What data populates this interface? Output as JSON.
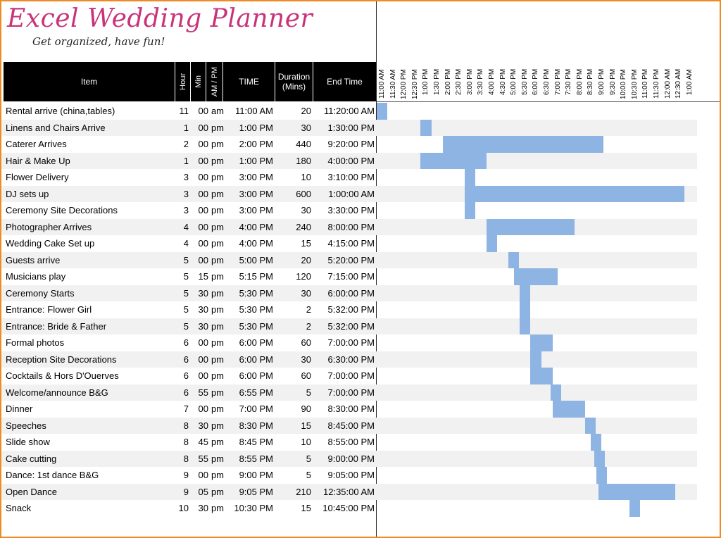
{
  "logo": {
    "title": "Excel Wedding Planner",
    "tagline": "Get organized, have fun!"
  },
  "header": {
    "item": "Item",
    "hour": "Hour",
    "min": "Min",
    "ampm": "AM / PM",
    "time": "TIME",
    "duration": "Duration (Mins)",
    "end": "End Time"
  },
  "timeline": [
    "11:00 AM",
    "11:30 AM",
    "12:00 PM",
    "12:30 PM",
    "1:00 PM",
    "1:30 PM",
    "2:00 PM",
    "2:30 PM",
    "3:00 PM",
    "3:30 PM",
    "4:00 PM",
    "4:30 PM",
    "5:00 PM",
    "5:30 PM",
    "6:00 PM",
    "6:30 PM",
    "7:00 PM",
    "7:30 PM",
    "8:00 PM",
    "8:30 PM",
    "9:00 PM",
    "9:30 PM",
    "10:00 PM",
    "10:30 PM",
    "11:00 PM",
    "11:30 PM",
    "12:00 AM",
    "12:30 AM",
    "1:00 AM"
  ],
  "colors": {
    "bar": "#8eb4e3",
    "frame": "#f08a24",
    "header_bg": "#000000",
    "logo": "#c8347a"
  },
  "rows": [
    {
      "item": "Rental arrive (china,tables)",
      "hour": "11",
      "min": "00",
      "ampm": "am",
      "time": "11:00 AM",
      "duration": "20",
      "end": "11:20:00 AM"
    },
    {
      "item": "Linens and Chairs Arrive",
      "hour": "1",
      "min": "00",
      "ampm": "pm",
      "time": "1:00 PM",
      "duration": "30",
      "end": "1:30:00 PM"
    },
    {
      "item": "Caterer Arrives",
      "hour": "2",
      "min": "00",
      "ampm": "pm",
      "time": "2:00 PM",
      "duration": "440",
      "end": "9:20:00 PM"
    },
    {
      "item": "Hair & Make Up",
      "hour": "1",
      "min": "00",
      "ampm": "pm",
      "time": "1:00 PM",
      "duration": "180",
      "end": "4:00:00 PM"
    },
    {
      "item": "Flower Delivery",
      "hour": "3",
      "min": "00",
      "ampm": "pm",
      "time": "3:00 PM",
      "duration": "10",
      "end": "3:10:00 PM"
    },
    {
      "item": "DJ sets up",
      "hour": "3",
      "min": "00",
      "ampm": "pm",
      "time": "3:00 PM",
      "duration": "600",
      "end": "1:00:00 AM"
    },
    {
      "item": "Ceremony Site Decorations",
      "hour": "3",
      "min": "00",
      "ampm": "pm",
      "time": "3:00 PM",
      "duration": "30",
      "end": "3:30:00 PM"
    },
    {
      "item": "Photographer Arrives",
      "hour": "4",
      "min": "00",
      "ampm": "pm",
      "time": "4:00 PM",
      "duration": "240",
      "end": "8:00:00 PM"
    },
    {
      "item": "Wedding Cake Set up",
      "hour": "4",
      "min": "00",
      "ampm": "pm",
      "time": "4:00 PM",
      "duration": "15",
      "end": "4:15:00 PM"
    },
    {
      "item": "Guests arrive",
      "hour": "5",
      "min": "00",
      "ampm": "pm",
      "time": "5:00 PM",
      "duration": "20",
      "end": "5:20:00 PM"
    },
    {
      "item": "Musicians play",
      "hour": "5",
      "min": "15",
      "ampm": "pm",
      "time": "5:15 PM",
      "duration": "120",
      "end": "7:15:00 PM"
    },
    {
      "item": "Ceremony Starts",
      "hour": "5",
      "min": "30",
      "ampm": "pm",
      "time": "5:30 PM",
      "duration": "30",
      "end": "6:00:00 PM"
    },
    {
      "item": "Entrance: Flower Girl",
      "hour": "5",
      "min": "30",
      "ampm": "pm",
      "time": "5:30 PM",
      "duration": "2",
      "end": "5:32:00 PM"
    },
    {
      "item": "Entrance: Bride & Father",
      "hour": "5",
      "min": "30",
      "ampm": "pm",
      "time": "5:30 PM",
      "duration": "2",
      "end": "5:32:00 PM"
    },
    {
      "item": "Formal photos",
      "hour": "6",
      "min": "00",
      "ampm": "pm",
      "time": "6:00 PM",
      "duration": "60",
      "end": "7:00:00 PM"
    },
    {
      "item": "Reception Site Decorations",
      "hour": "6",
      "min": "00",
      "ampm": "pm",
      "time": "6:00 PM",
      "duration": "30",
      "end": "6:30:00 PM"
    },
    {
      "item": "Cocktails & Hors D'Ouerves",
      "hour": "6",
      "min": "00",
      "ampm": "pm",
      "time": "6:00 PM",
      "duration": "60",
      "end": "7:00:00 PM"
    },
    {
      "item": "Welcome/announce B&G",
      "hour": "6",
      "min": "55",
      "ampm": "pm",
      "time": "6:55 PM",
      "duration": "5",
      "end": "7:00:00 PM"
    },
    {
      "item": "Dinner",
      "hour": "7",
      "min": "00",
      "ampm": "pm",
      "time": "7:00 PM",
      "duration": "90",
      "end": "8:30:00 PM"
    },
    {
      "item": "Speeches",
      "hour": "8",
      "min": "30",
      "ampm": "pm",
      "time": "8:30 PM",
      "duration": "15",
      "end": "8:45:00 PM"
    },
    {
      "item": "Slide show",
      "hour": "8",
      "min": "45",
      "ampm": "pm",
      "time": "8:45 PM",
      "duration": "10",
      "end": "8:55:00 PM"
    },
    {
      "item": "Cake cutting",
      "hour": "8",
      "min": "55",
      "ampm": "pm",
      "time": "8:55 PM",
      "duration": "5",
      "end": "9:00:00 PM"
    },
    {
      "item": "Dance: 1st dance B&G",
      "hour": "9",
      "min": "00",
      "ampm": "pm",
      "time": "9:00 PM",
      "duration": "5",
      "end": "9:05:00 PM"
    },
    {
      "item": "Open Dance",
      "hour": "9",
      "min": "05",
      "ampm": "pm",
      "time": "9:05 PM",
      "duration": "210",
      "end": "12:35:00 AM"
    },
    {
      "item": "Snack",
      "hour": "10",
      "min": "30",
      "ampm": "pm",
      "time": "10:30 PM",
      "duration": "15",
      "end": "10:45:00 PM"
    }
  ],
  "chart_data": {
    "type": "bar",
    "orientation": "horizontal-gantt",
    "categories": [
      "Rental arrive (china,tables)",
      "Linens and Chairs Arrive",
      "Caterer Arrives",
      "Hair & Make Up",
      "Flower Delivery",
      "DJ sets up",
      "Ceremony Site Decorations",
      "Photographer Arrives",
      "Wedding Cake Set up",
      "Guests arrive",
      "Musicians play",
      "Ceremony Starts",
      "Entrance: Flower Girl",
      "Entrance: Bride & Father",
      "Formal photos",
      "Reception Site Decorations",
      "Cocktails & Hors D'Ouerves",
      "Welcome/announce B&G",
      "Dinner",
      "Speeches",
      "Slide show",
      "Cake cutting",
      "Dance: 1st dance B&G",
      "Open Dance",
      "Snack"
    ],
    "start_time": [
      "11:00 AM",
      "1:00 PM",
      "2:00 PM",
      "1:00 PM",
      "3:00 PM",
      "3:00 PM",
      "3:00 PM",
      "4:00 PM",
      "4:00 PM",
      "5:00 PM",
      "5:15 PM",
      "5:30 PM",
      "5:30 PM",
      "5:30 PM",
      "6:00 PM",
      "6:00 PM",
      "6:00 PM",
      "6:55 PM",
      "7:00 PM",
      "8:30 PM",
      "8:45 PM",
      "8:55 PM",
      "9:00 PM",
      "9:05 PM",
      "10:30 PM"
    ],
    "duration_mins": [
      20,
      30,
      440,
      180,
      10,
      600,
      30,
      240,
      15,
      20,
      120,
      30,
      2,
      2,
      60,
      30,
      60,
      5,
      90,
      15,
      10,
      5,
      5,
      210,
      15
    ],
    "xlim": [
      "11:00 AM",
      "1:00 AM"
    ]
  }
}
